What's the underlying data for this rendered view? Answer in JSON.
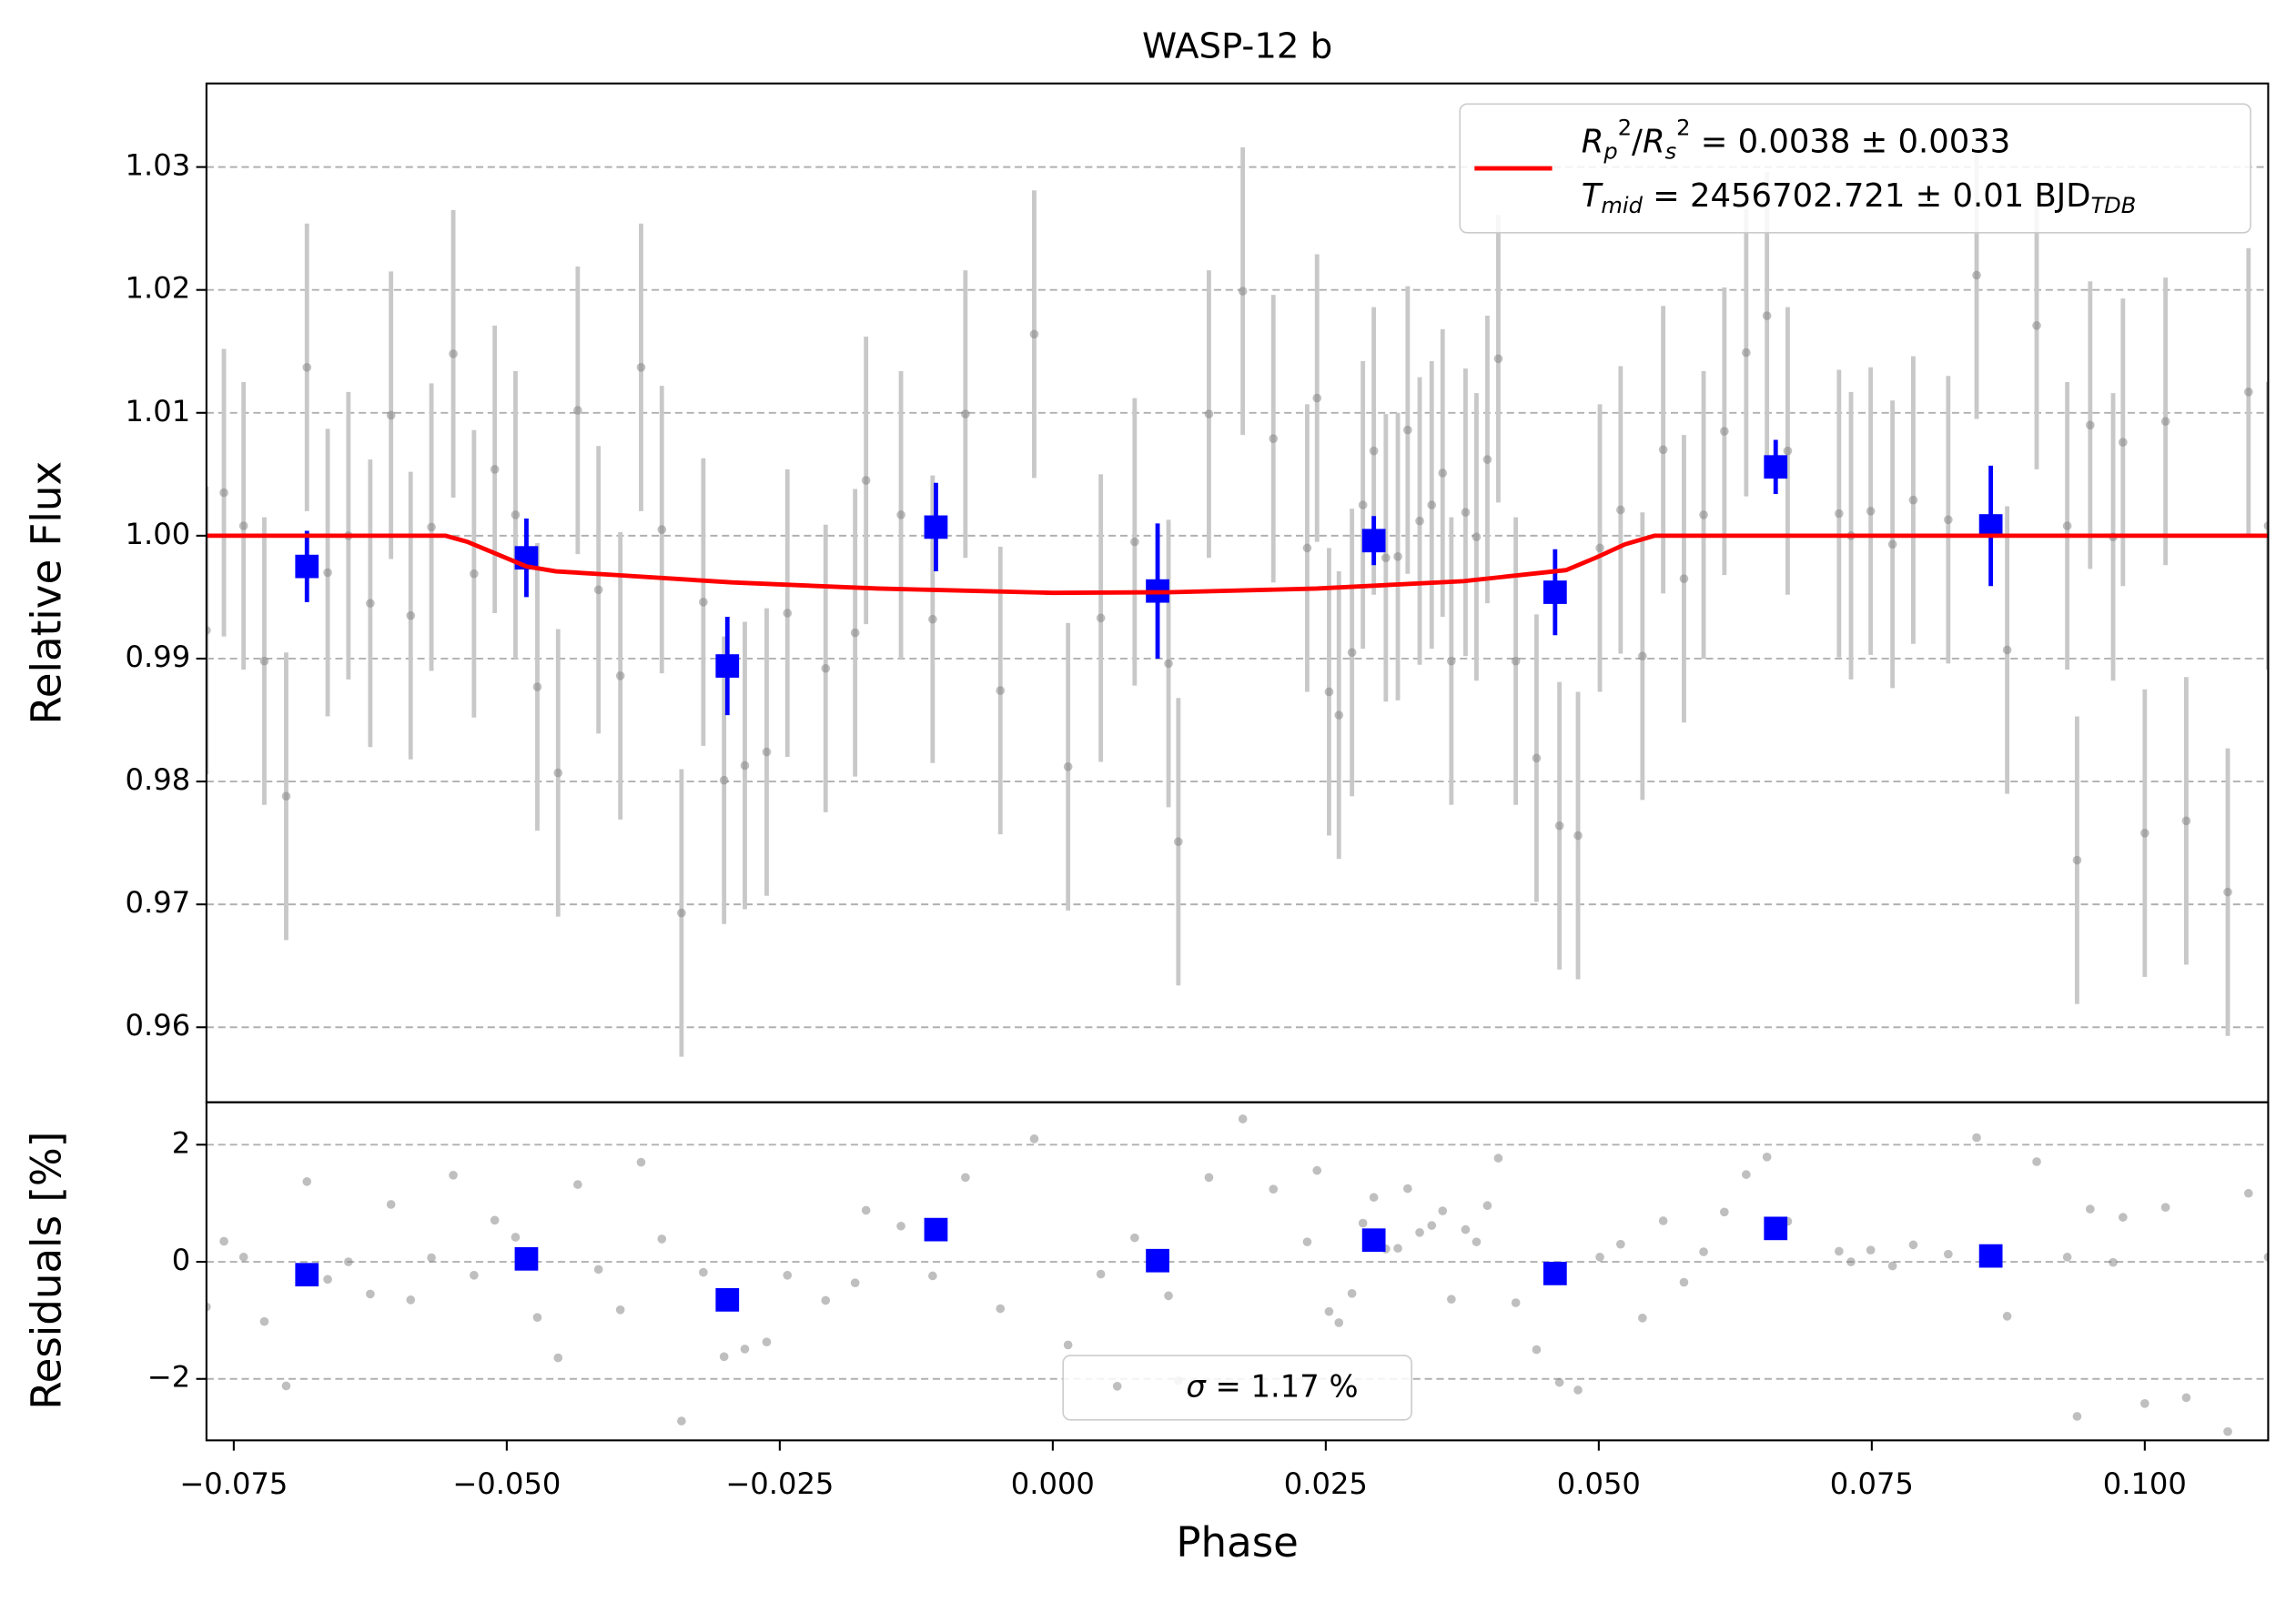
{
  "chart_data": [
    {
      "type": "scatter",
      "title": "WASP-12 b",
      "ylabel": "Relative Flux",
      "xlim": [
        -0.0775,
        0.1113
      ],
      "ylim": [
        0.9539,
        1.0368
      ],
      "yticks": [
        0.96,
        0.97,
        0.98,
        0.99,
        {
          "value": 1.0,
          "label": "1.00"
        },
        1.01,
        1.02,
        1.03
      ],
      "grid": true,
      "legend": "upper right",
      "series": [
        {
          "color": "#808080",
          "error_color": "#c8c8c8",
          "error": 0.0117,
          "x": [
            -0.0775,
            -0.0759,
            -0.0741,
            -0.0722,
            -0.0702,
            -0.0683,
            -0.0664,
            -0.0645,
            -0.0625,
            -0.0606,
            -0.0588,
            -0.0569,
            -0.0549,
            -0.053,
            -0.0511,
            -0.0492,
            -0.0472,
            -0.0453,
            -0.0435,
            -0.0416,
            -0.0396,
            -0.0377,
            -0.0358,
            -0.034,
            -0.032,
            -0.0301,
            -0.0282,
            -0.0262,
            -0.0243,
            -0.0208,
            -0.0181,
            -0.0171,
            -0.0139,
            -0.011,
            -0.008,
            -0.0048,
            -0.0017,
            0.0014,
            0.0044,
            0.0075,
            0.0106,
            0.0115,
            0.0143,
            0.0174,
            0.0202,
            0.0233,
            0.0242,
            0.0253,
            0.0262,
            0.0274,
            0.0284,
            0.0294,
            0.0305,
            0.0316,
            0.0325,
            0.0336,
            0.0347,
            0.0357,
            0.0365,
            0.0378,
            0.0388,
            0.0398,
            0.0408,
            0.0424,
            0.0443,
            0.0464,
            0.0481,
            0.0501,
            0.052,
            0.054,
            0.0559,
            0.0578,
            0.0596,
            0.0615,
            0.0635,
            0.0654,
            0.0673,
            0.072,
            0.0731,
            0.0749,
            0.0769,
            0.0788,
            0.082,
            0.0846,
            0.0874,
            0.0901,
            0.0929,
            0.0938,
            0.095,
            0.0971,
            0.098,
            0.1,
            0.1019,
            0.1038,
            0.1076,
            0.1095,
            0.1113
          ],
          "values": [
            0.9923,
            1.0035,
            1.0008,
            0.9898,
            0.9788,
            1.0137,
            0.997,
            1.0,
            0.9945,
            1.0098,
            0.9935,
            1.0007,
            1.0148,
            0.9969,
            1.0054,
            1.0017,
            0.9877,
            0.9807,
            1.0102,
            0.9956,
            0.9886,
            1.0137,
            1.0005,
            0.9693,
            0.9946,
            0.9801,
            0.9813,
            0.9824,
            0.9937,
            0.9892,
            0.9921,
            1.0045,
            1.0017,
            0.9932,
            1.0099,
            0.9874,
            1.0164,
            0.9812,
            0.9933,
            0.9995,
            0.9896,
            0.9751,
            1.0099,
            1.0199,
            1.0079,
            0.999,
            1.0112,
            0.9873,
            0.9854,
            0.9905,
            1.0025,
            1.0069,
            0.9982,
            0.9983,
            1.0086,
            1.0012,
            1.0025,
            1.0051,
            0.9898,
            1.0019,
            0.9999,
            1.0062,
            1.0144,
            0.9898,
            0.9819,
            0.9764,
            0.9756,
            0.999,
            1.0021,
            0.9902,
            1.007,
            0.9965,
            1.0017,
            1.0085,
            1.0149,
            1.0179,
            1.0069,
            1.0018,
            1.0,
            1.002,
            0.9993,
            1.0029,
            1.0013,
            1.0212,
            0.9907,
            1.0171,
            1.0008,
            0.9736,
            1.009,
            0.9999,
            1.0076,
            0.9758,
            1.0093,
            0.9768,
            0.971,
            1.0117,
            1.0008
          ]
        },
        {
          "color": "#0000ff",
          "x": [
            -0.0683,
            -0.0482,
            -0.0298,
            -0.0107,
            0.0096,
            0.0294,
            0.046,
            0.0662,
            0.0859
          ],
          "values": [
            0.9975,
            0.9982,
            0.9894,
            1.0007,
            0.9955,
            0.9996,
            0.9954,
            1.0056,
            1.0008
          ],
          "errors": [
            0.0029,
            0.0032,
            0.004,
            0.0036,
            0.0055,
            0.002,
            0.0035,
            0.0022,
            0.0049
          ]
        },
        {
          "type": "line",
          "color": "#ff0000",
          "name_parts": [
            "R",
            "p",
            "2",
            "/",
            "R",
            "s",
            "2",
            " = 0.0038 ± 0.0033"
          ],
          "note_parts": [
            "T",
            "mid",
            " = 2456702.721 ± 0.01 BJD",
            "TDB"
          ],
          "x": [
            -0.0775,
            -0.0556,
            -0.0536,
            -0.0509,
            -0.0482,
            -0.0455,
            -0.04,
            -0.0294,
            -0.016,
            0,
            0.0108,
            0.0242,
            0.0376,
            0.047,
            0.0497,
            0.0524,
            0.0551,
            0.1113
          ],
          "values": [
            1,
            1,
            0.9995,
            0.9985,
            0.9975,
            0.9971,
            0.9968,
            0.9962,
            0.9957,
            0.99535,
            0.9954,
            0.9957,
            0.9963,
            0.9972,
            0.9982,
            0.9993,
            1,
            1
          ]
        }
      ]
    },
    {
      "type": "scatter",
      "ylabel": "Residuals [%]",
      "xlabel": "Phase",
      "xlim": [
        -0.0775,
        0.1113
      ],
      "ylim": [
        -3.05,
        2.725
      ],
      "xticks": [
        {
          "value": -0.075,
          "label": "−0.075"
        },
        {
          "value": -0.05,
          "label": "−0.050"
        },
        {
          "value": -0.025,
          "label": "−0.025"
        },
        {
          "value": 0,
          "label": "0.000"
        },
        {
          "value": 0.025,
          "label": "0.025"
        },
        {
          "value": 0.05,
          "label": "0.050"
        },
        {
          "value": 0.075,
          "label": "0.075"
        },
        {
          "value": 0.1,
          "label": "0.100"
        }
      ],
      "yticks": [
        {
          "value": -2,
          "label": "−2"
        },
        0,
        2
      ],
      "grid": true,
      "legend": "lower center",
      "legend_parts": [
        "σ",
        " = 1.17 %"
      ],
      "series": [
        {
          "color": "#808080",
          "values": [
            -0.77,
            0.35,
            0.08,
            -1.02,
            -2.12,
            1.37,
            -0.3,
            0,
            -0.55,
            0.98,
            -0.65,
            0.07,
            1.48,
            -0.23,
            0.71,
            0.42,
            -0.95,
            -1.64,
            1.32,
            -0.13,
            -0.82,
            1.7,
            0.39,
            -2.72,
            -0.18,
            -1.62,
            -1.49,
            -1.37,
            -0.23,
            -0.66,
            -0.36,
            0.88,
            0.61,
            -0.24,
            1.44,
            -0.8,
            2.1,
            -1.42,
            -0.21,
            0.41,
            -0.58,
            -2.03,
            1.44,
            2.44,
            1.24,
            0.34,
            1.56,
            -0.85,
            -1.04,
            -0.54,
            0.66,
            1.1,
            0.22,
            0.23,
            1.25,
            0.5,
            0.62,
            0.87,
            -0.64,
            0.55,
            0.34,
            0.96,
            1.77,
            -0.7,
            -1.5,
            -2.06,
            -2.19,
            0.08,
            0.3,
            -0.96,
            0.7,
            -0.35,
            0.17,
            0.85,
            1.49,
            1.79,
            0.69,
            0.18,
            0,
            0.2,
            -0.07,
            0.29,
            0.13,
            2.12,
            -0.93,
            1.71,
            0.08,
            -2.64,
            0.9,
            -0.01,
            0.76,
            -2.42,
            0.93,
            -2.32,
            -2.9,
            1.17,
            0.08
          ]
        },
        {
          "color": "#0000ff",
          "values": [
            -0.22,
            0.05,
            -0.65,
            0.55,
            0.02,
            0.37,
            -0.2,
            0.57,
            0.1
          ]
        }
      ]
    }
  ]
}
